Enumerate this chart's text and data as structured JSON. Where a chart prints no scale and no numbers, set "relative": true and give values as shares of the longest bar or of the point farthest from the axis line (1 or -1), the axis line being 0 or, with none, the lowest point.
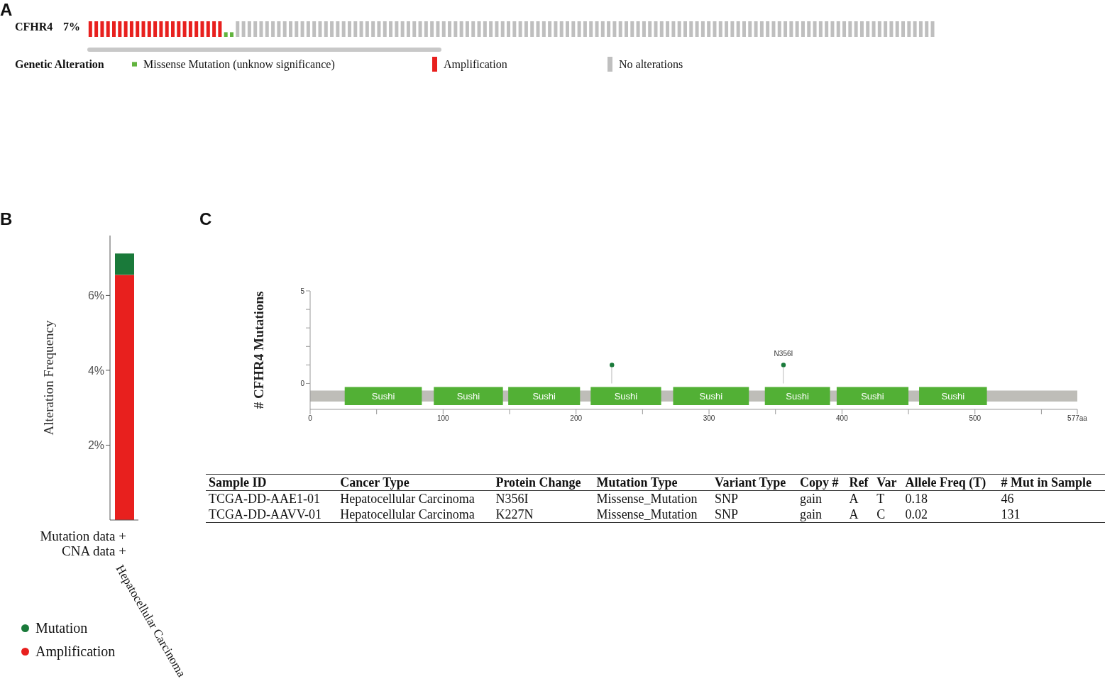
{
  "chart_data": [
    {
      "type": "bar",
      "relative": true,
      "stacked": true,
      "title": "CFHR4",
      "annotations": [
        "A",
        "7%"
      ],
      "legend_title": "Genetic Alteration",
      "legend": "bottom left",
      "categories": [
        null,
        null,
        null,
        null,
        null,
        null,
        null,
        null,
        null,
        null,
        null,
        null,
        null,
        null,
        null,
        null,
        null,
        null,
        null,
        null,
        null,
        null,
        null,
        null,
        null,
        null,
        null,
        null,
        null,
        null,
        null,
        null,
        null,
        null,
        null,
        null,
        null,
        null,
        null,
        null,
        null,
        null,
        null,
        null,
        null,
        null,
        null,
        null,
        null,
        null,
        null,
        null,
        null,
        null,
        null,
        null,
        null,
        null,
        null,
        null,
        null,
        null,
        null,
        null,
        null,
        null,
        null,
        null,
        null,
        null,
        null,
        null,
        null,
        null,
        null,
        null,
        null,
        null,
        null,
        null,
        null,
        null,
        null,
        null,
        null,
        null,
        null,
        null,
        null,
        null,
        null,
        null,
        null,
        null,
        null,
        null,
        null,
        null,
        null,
        null,
        null,
        null,
        null,
        null,
        null,
        null,
        null,
        null,
        null,
        null,
        null,
        null,
        null,
        null,
        null,
        null,
        null,
        null,
        null,
        null,
        null,
        null,
        null,
        null,
        null,
        null,
        null,
        null,
        null,
        null,
        null,
        null,
        null,
        null,
        null,
        null,
        null,
        null,
        null,
        null,
        null,
        null,
        null,
        null
      ],
      "series": [
        {
          "name": "Missense Mutation (unknow significance)",
          "color": "#62b43f",
          "values": [
            null,
            null,
            null,
            null,
            null,
            null,
            null,
            null,
            null,
            null,
            null,
            null,
            null,
            null,
            null,
            null,
            null,
            null,
            null,
            null,
            null,
            null,
            null,
            0.3,
            0.3,
            null,
            null,
            null,
            null,
            null,
            null,
            null,
            null,
            null,
            null,
            null,
            null,
            null,
            null,
            null,
            null,
            null,
            null,
            null,
            null,
            null,
            null,
            null,
            null,
            null,
            null,
            null,
            null,
            null,
            null,
            null,
            null,
            null,
            null,
            null,
            null,
            null,
            null,
            null,
            null,
            null,
            null,
            null,
            null,
            null,
            null,
            null,
            null,
            null,
            null,
            null,
            null,
            null,
            null,
            null,
            null,
            null,
            null,
            null,
            null,
            null,
            null,
            null,
            null,
            null,
            null,
            null,
            null,
            null,
            null,
            null,
            null,
            null,
            null,
            null,
            null,
            null,
            null,
            null,
            null,
            null,
            null,
            null,
            null,
            null,
            null,
            null,
            null,
            null,
            null,
            null,
            null,
            null,
            null,
            null,
            null,
            null,
            null,
            null,
            null,
            null,
            null,
            null,
            null,
            null,
            null,
            null,
            null,
            null,
            null,
            null,
            null,
            null,
            null,
            null,
            null,
            null,
            null,
            null
          ]
        },
        {
          "name": "Amplification",
          "color": "#e8201e",
          "values": [
            1,
            1,
            1,
            1,
            1,
            1,
            1,
            1,
            1,
            1,
            1,
            1,
            1,
            1,
            1,
            1,
            1,
            1,
            1,
            1,
            1,
            1,
            1,
            null,
            null,
            null,
            null,
            null,
            null,
            null,
            null,
            null,
            null,
            null,
            null,
            null,
            null,
            null,
            null,
            null,
            null,
            null,
            null,
            null,
            null,
            null,
            null,
            null,
            null,
            null,
            null,
            null,
            null,
            null,
            null,
            null,
            null,
            null,
            null,
            null,
            null,
            null,
            null,
            null,
            null,
            null,
            null,
            null,
            null,
            null,
            null,
            null,
            null,
            null,
            null,
            null,
            null,
            null,
            null,
            null,
            null,
            null,
            null,
            null,
            null,
            null,
            null,
            null,
            null,
            null,
            null,
            null,
            null,
            null,
            null,
            null,
            null,
            null,
            null,
            null,
            null,
            null,
            null,
            null,
            null,
            null,
            null,
            null,
            null,
            null,
            null,
            null,
            null,
            null,
            null,
            null,
            null,
            null,
            null,
            null,
            null,
            null,
            null,
            null,
            null,
            null,
            null,
            null,
            null,
            null,
            null,
            null,
            null,
            null,
            null,
            null,
            null,
            null,
            null,
            null,
            null,
            null,
            null,
            null
          ]
        },
        {
          "name": "No alterations",
          "color": "#bfbfbf",
          "values": [
            null,
            null,
            null,
            null,
            null,
            null,
            null,
            null,
            null,
            null,
            null,
            null,
            null,
            null,
            null,
            null,
            null,
            null,
            null,
            null,
            null,
            null,
            null,
            null,
            null,
            1,
            1,
            1,
            1,
            1,
            1,
            1,
            1,
            1,
            1,
            1,
            1,
            1,
            1,
            1,
            1,
            1,
            1,
            1,
            1,
            1,
            1,
            1,
            1,
            1,
            1,
            1,
            1,
            1,
            1,
            1,
            1,
            1,
            1,
            1,
            1,
            1,
            1,
            1,
            1,
            1,
            1,
            1,
            1,
            1,
            1,
            1,
            1,
            1,
            1,
            1,
            1,
            1,
            1,
            1,
            1,
            1,
            1,
            1,
            1,
            1,
            1,
            1,
            1,
            1,
            1,
            1,
            1,
            1,
            1,
            1,
            1,
            1,
            1,
            1,
            1,
            1,
            1,
            1,
            1,
            1,
            1,
            1,
            1,
            1,
            1,
            1,
            1,
            1,
            1,
            1,
            1,
            1,
            1,
            1,
            1,
            1,
            1,
            1,
            1,
            1,
            1,
            1,
            1,
            1,
            1,
            1,
            1,
            1,
            1,
            1,
            1,
            1,
            1,
            1,
            1,
            1,
            1,
            1
          ]
        }
      ]
    },
    {
      "type": "bar",
      "stacked": true,
      "annotations": [
        "B",
        "Mutation data +",
        "CNA data +"
      ],
      "categories": [
        "Hepatocellular Carcinoma"
      ],
      "ylabel": "Alteration Frequency",
      "ylim": [
        0,
        7.6
      ],
      "yticks": [
        {
          "value": 2,
          "label": "2%"
        },
        {
          "value": 4,
          "label": "4%"
        },
        {
          "value": 6,
          "label": "6%"
        }
      ],
      "legend": "bottom left",
      "marker": "circle",
      "series": [
        {
          "name": "Amplification",
          "color": "#e8201e",
          "values": [
            6.55
          ]
        },
        {
          "name": "Mutation",
          "color": "#1a7a3a",
          "values": [
            0.57
          ]
        }
      ]
    },
    {
      "type": "lollipop",
      "annotations": [
        "C"
      ],
      "ylabel": "# CFHR4 Mutations",
      "xlim": [
        0,
        577
      ],
      "xticks": [
        0,
        {
          "value": 50,
          "label": null
        },
        100,
        {
          "value": 150,
          "label": null
        },
        200,
        {
          "value": 250,
          "label": null
        },
        300,
        {
          "value": 350,
          "label": null
        },
        400,
        {
          "value": 450,
          "label": null
        },
        500,
        {
          "value": 550,
          "label": null
        },
        {
          "value": 577,
          "label": "577aa"
        }
      ],
      "ylim": [
        -1.4,
        5
      ],
      "yticks": [
        0,
        {
          "value": 1,
          "label": null
        },
        {
          "value": 2,
          "label": null
        },
        {
          "value": 3,
          "label": null
        },
        {
          "value": 4,
          "label": null
        },
        5
      ],
      "bands": [
        {
          "axis": "x",
          "from": 0,
          "to": 577,
          "color": "#bebdb8"
        },
        {
          "axis": "x",
          "from": 26,
          "to": 84,
          "label": "Sushi",
          "color": "#52b035"
        },
        {
          "axis": "x",
          "from": 93,
          "to": 145,
          "label": "Sushi",
          "color": "#52b035"
        },
        {
          "axis": "x",
          "from": 149,
          "to": 203,
          "label": "Sushi",
          "color": "#52b035"
        },
        {
          "axis": "x",
          "from": 211,
          "to": 264,
          "label": "Sushi",
          "color": "#52b035"
        },
        {
          "axis": "x",
          "from": 273,
          "to": 330,
          "label": "Sushi",
          "color": "#52b035"
        },
        {
          "axis": "x",
          "from": 342,
          "to": 391,
          "label": "Sushi",
          "color": "#52b035"
        },
        {
          "axis": "x",
          "from": 396,
          "to": 450,
          "label": "Sushi",
          "color": "#52b035"
        },
        {
          "axis": "x",
          "from": 458,
          "to": 509,
          "label": "Sushi",
          "color": "#52b035"
        }
      ],
      "series": [
        {
          "type": "lollipop",
          "color": "#1a7a3a",
          "x": [
            227,
            356
          ],
          "values": [
            1,
            1
          ],
          "value_labels": [
            null,
            "N356I"
          ]
        }
      ]
    },
    {
      "type": "other",
      "categories": [
        "Sample ID",
        "Cancer Type",
        "Protein Change",
        "Mutation Type",
        "Variant Type",
        "Copy #",
        "Ref",
        "Var",
        "Allele Freq (T)",
        "# Mut in Sample"
      ],
      "cell_labels": [
        [
          "TCGA-DD-AAE1-01",
          "Hepatocellular Carcinoma",
          "N356I",
          "Missense_Mutation",
          "SNP",
          "gain",
          "A",
          "T",
          "0.18",
          "46"
        ],
        [
          "TCGA-DD-AAVV-01",
          "Hepatocellular Carcinoma",
          "K227N",
          "Missense_Mutation",
          "SNP",
          "gain",
          "A",
          "C",
          "0.02",
          "131"
        ]
      ]
    }
  ]
}
